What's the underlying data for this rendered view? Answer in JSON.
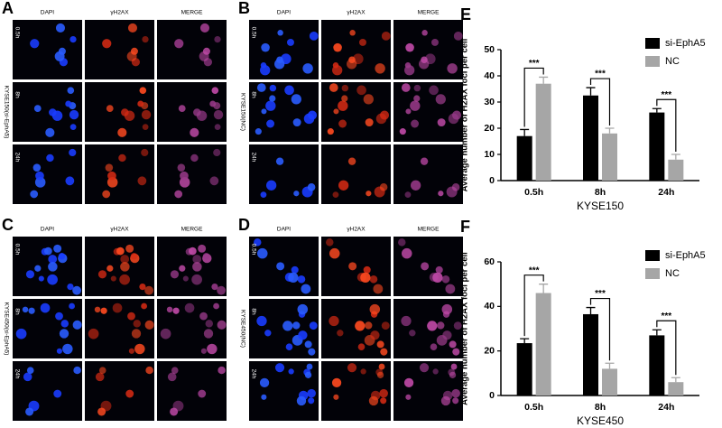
{
  "panels": [
    {
      "letter": "A",
      "columns": [
        "DAPI",
        "γH2AX",
        "MERGE"
      ],
      "rows": [
        "0.5h",
        "8h",
        "24h"
      ],
      "side_label": "KYSE150(si-EphA5)"
    },
    {
      "letter": "B",
      "columns": [
        "DAPI",
        "γH2AX",
        "MERGE"
      ],
      "rows": [
        "0.5h",
        "8h",
        "24h"
      ],
      "side_label": "KYSE150(NC)"
    },
    {
      "letter": "C",
      "columns": [
        "DAPI",
        "γH2AX",
        "MERGE"
      ],
      "rows": [
        "0.5h",
        "8h",
        "24h"
      ],
      "side_label": "KYSE450(si-EphA5)"
    },
    {
      "letter": "D",
      "columns": [
        "DAPI",
        "γH2AX",
        "MERGE"
      ],
      "rows": [
        "0.5h",
        "8h",
        "24h"
      ],
      "side_label": "KYSE450(NC)"
    }
  ],
  "chart_data": [
    {
      "type": "bar",
      "letter": "E",
      "y_label": "Average number of H2AX foci per cell",
      "x_label": "KYSE150",
      "categories": [
        "0.5h",
        "8h",
        "24h"
      ],
      "series": [
        {
          "name": "si-EphA5",
          "color": "#000000",
          "values": [
            17,
            32.5,
            26
          ],
          "errors": [
            2.5,
            3,
            1.5
          ]
        },
        {
          "name": "NC",
          "color": "#a6a6a6",
          "values": [
            37,
            18,
            8
          ],
          "errors": [
            2.5,
            2,
            2
          ]
        }
      ],
      "annotations": [
        "***",
        "***",
        "***"
      ],
      "ylim": [
        0,
        50
      ],
      "yticks": [
        0,
        10,
        20,
        30,
        40,
        50
      ]
    },
    {
      "type": "bar",
      "letter": "F",
      "y_label": "Average number of H2AX foci per cell",
      "x_label": "KYSE450",
      "categories": [
        "0.5h",
        "8h",
        "24h"
      ],
      "series": [
        {
          "name": "si-EphA5",
          "color": "#000000",
          "values": [
            23.5,
            36.5,
            27
          ],
          "errors": [
            2,
            3,
            2.5
          ]
        },
        {
          "name": "NC",
          "color": "#a6a6a6",
          "values": [
            46,
            12,
            6
          ],
          "errors": [
            4,
            2.5,
            2
          ]
        }
      ],
      "annotations": [
        "***",
        "***",
        "***"
      ],
      "ylim": [
        0,
        60
      ],
      "yticks": [
        0,
        20,
        40,
        60
      ]
    }
  ]
}
